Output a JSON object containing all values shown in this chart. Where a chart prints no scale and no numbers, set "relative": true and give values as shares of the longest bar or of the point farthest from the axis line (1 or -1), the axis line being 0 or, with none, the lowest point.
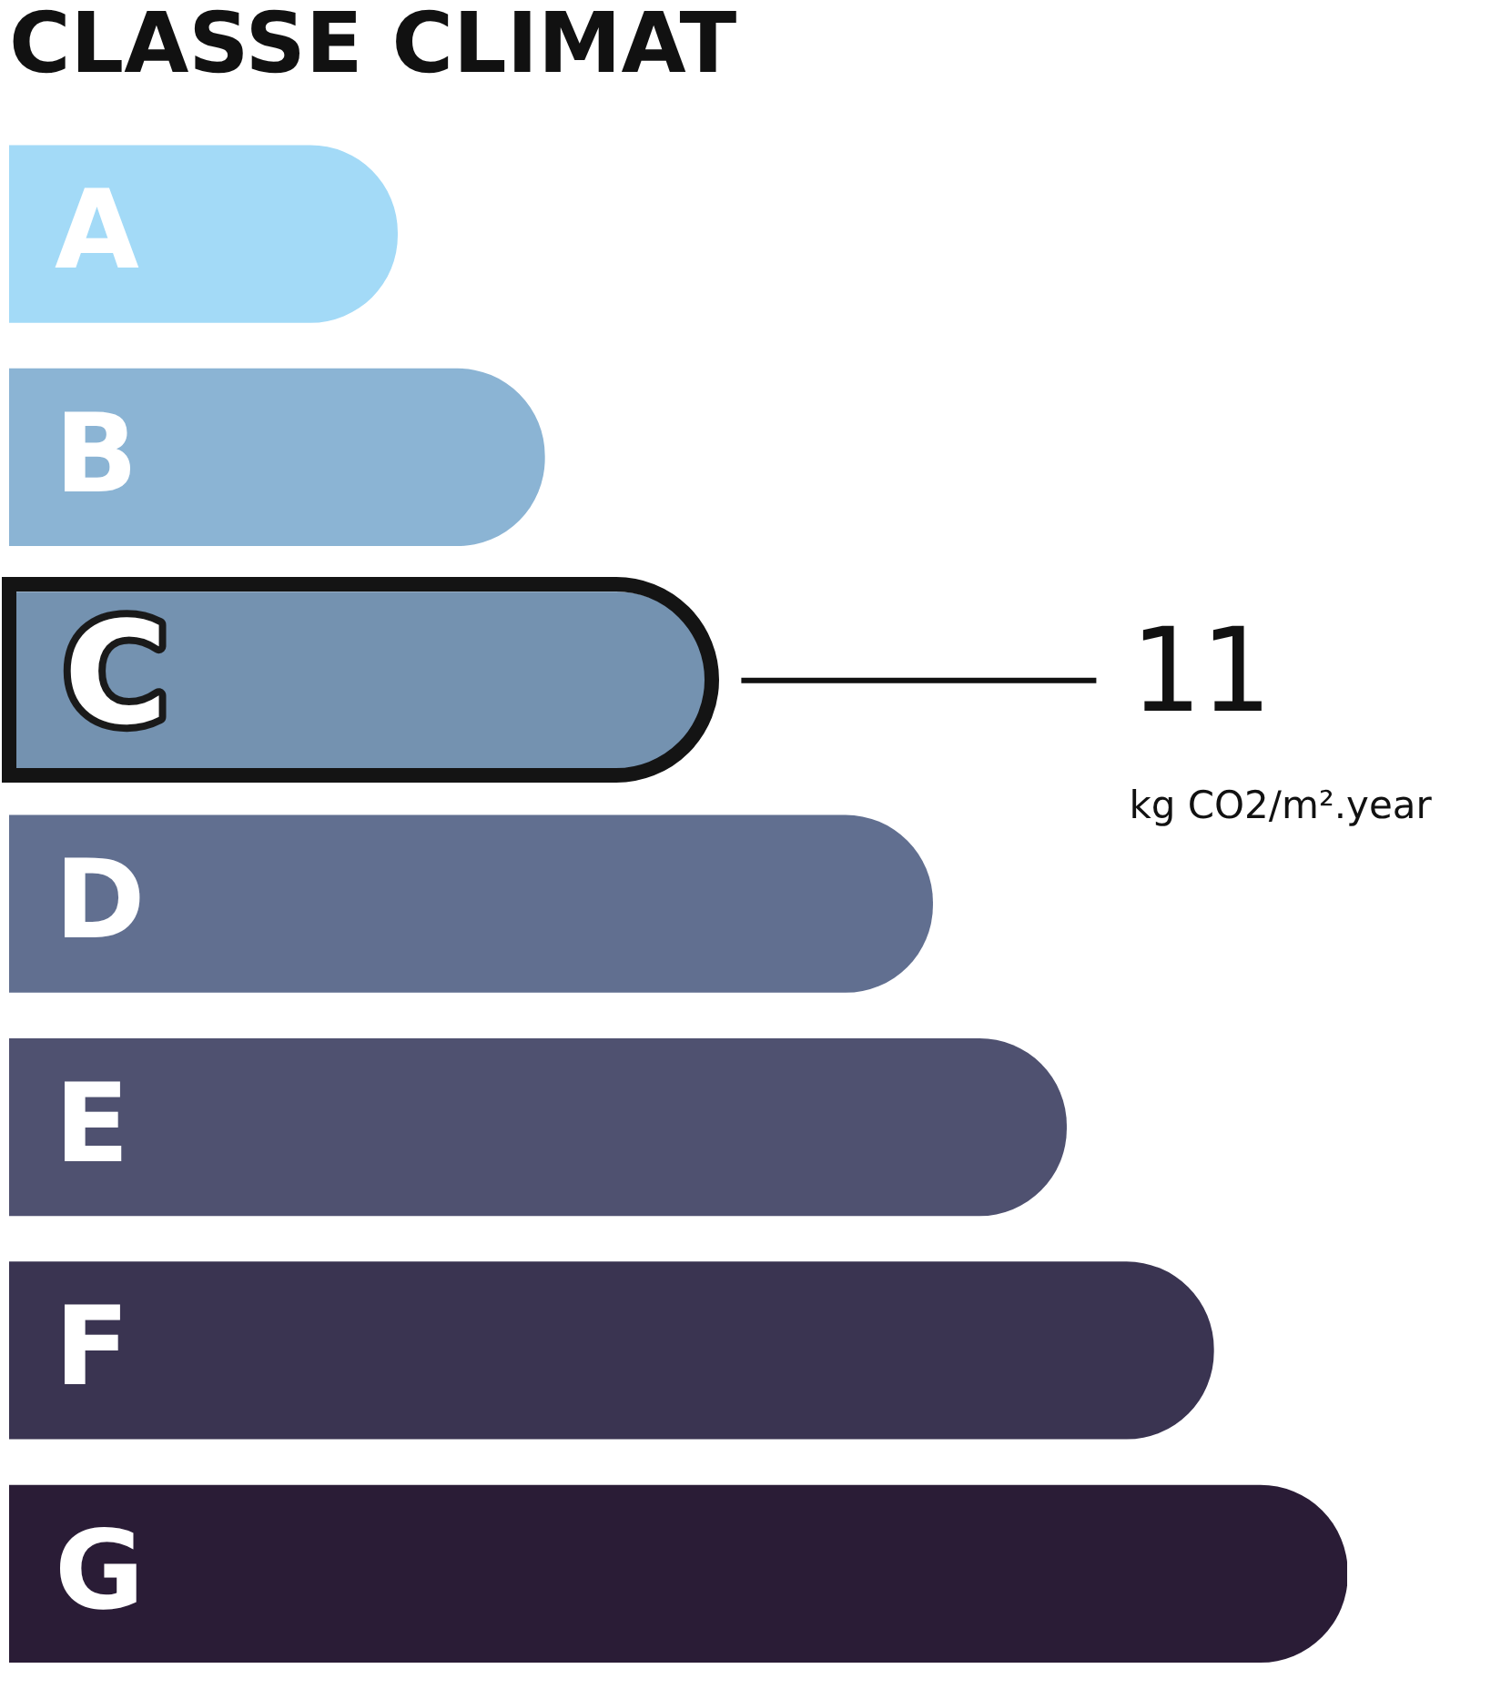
{
  "chart_data": {
    "type": "bar",
    "orientation": "horizontal",
    "relative": true,
    "title": "CLASSE CLIMAT",
    "categories": [
      "A",
      "B",
      "C",
      "D",
      "E",
      "F",
      "G"
    ],
    "values": [
      0.29,
      0.4,
      0.52,
      0.69,
      0.79,
      0.9,
      1
    ],
    "colors": [
      "#a3daf7",
      "#8bb4d4",
      "#7492b0",
      "#616f90",
      "#4f5170",
      "#3a3451",
      "#2a1c36"
    ],
    "annotations": [
      "11",
      "kg CO2/m².year"
    ]
  }
}
